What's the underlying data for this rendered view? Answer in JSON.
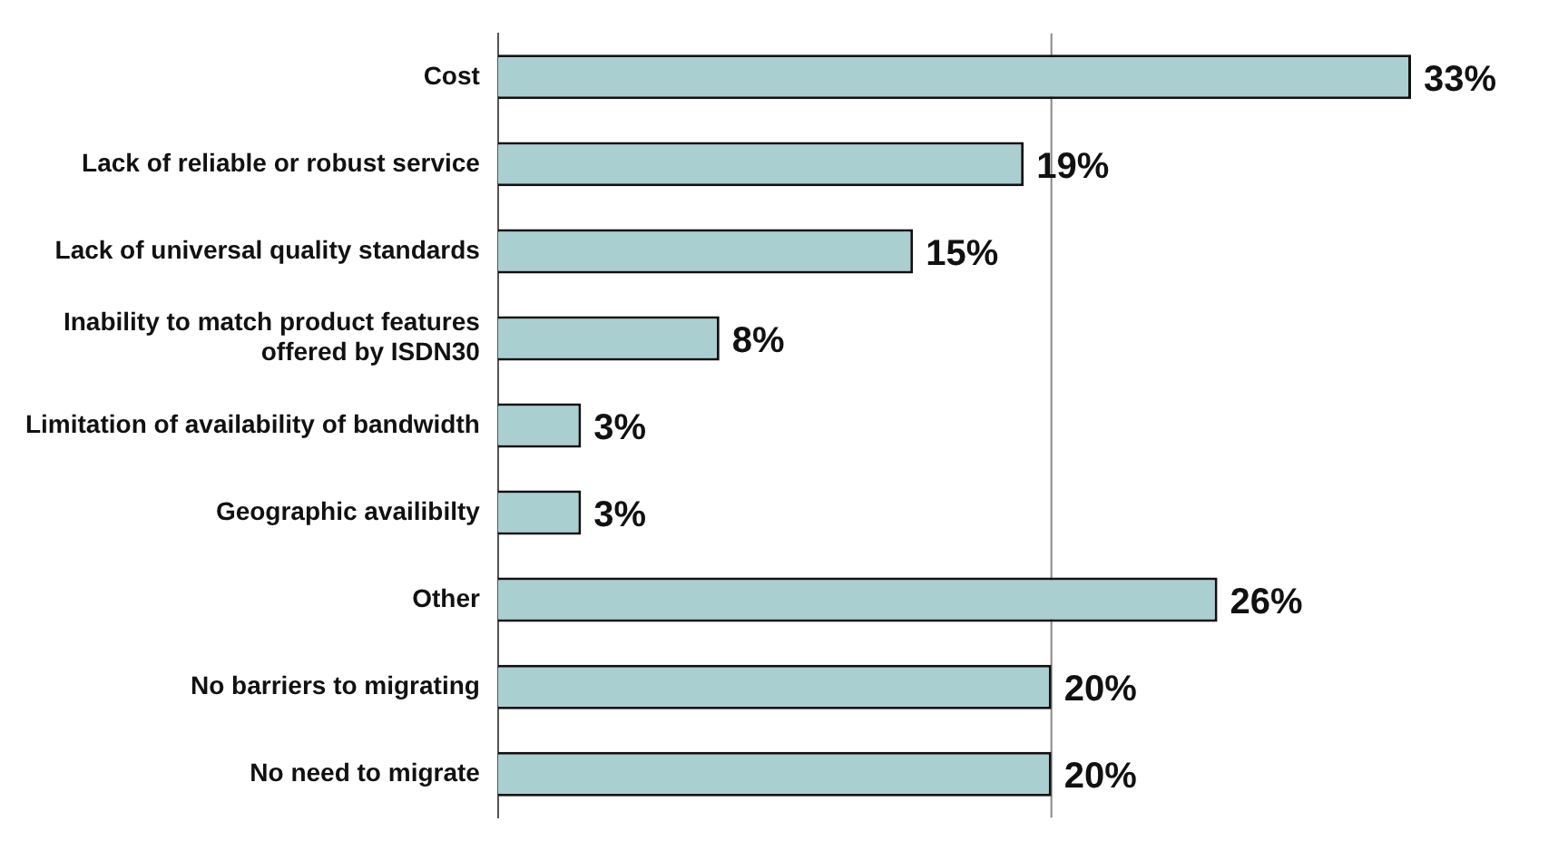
{
  "chart_data": {
    "type": "bar",
    "orientation": "horizontal",
    "categories": [
      "Cost",
      "Lack of reliable or robust service",
      "Lack of universal quality standards",
      "Inability to match product features offered by ISDN30",
      "Limitation of availability of bandwidth",
      "Geographic availibilty",
      "Other",
      "No barriers to migrating",
      "No need to migrate"
    ],
    "values": [
      33,
      19,
      15,
      8,
      3,
      3,
      26,
      20,
      20
    ],
    "value_labels": [
      "33%",
      "19%",
      "15%",
      "8%",
      "3%",
      "3%",
      "26%",
      "20%",
      "20%"
    ],
    "color": "#a9cfd1",
    "ref_lines": [
      {
        "axis": "x",
        "value": 20,
        "color": "#888888"
      }
    ],
    "legend": false,
    "tick_labels": "y"
  }
}
